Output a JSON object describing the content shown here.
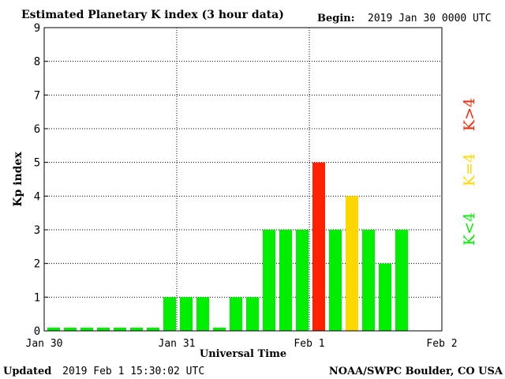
{
  "chart_data": {
    "type": "bar",
    "title": "Estimated Planetary K index (3 hour data)",
    "begin_label": "Begin:",
    "begin_value": "2019 Jan 30 0000 UTC",
    "ylabel": "Kp index",
    "xlabel": "Universal Time",
    "ylim": [
      0,
      9
    ],
    "yticks": [
      "0",
      "1",
      "2",
      "3",
      "4",
      "5",
      "6",
      "7",
      "8",
      "9"
    ],
    "x_tick_labels": [
      "Jan 30",
      "Jan 31",
      "Feb 1",
      "Feb 2"
    ],
    "slots_per_day": 8,
    "total_slots": 24,
    "values": [
      0,
      0,
      0,
      0,
      0,
      0,
      0,
      1,
      1,
      1,
      0,
      1,
      1,
      3,
      3,
      3,
      5,
      3,
      4,
      3,
      2,
      3
    ],
    "grid": "dotted",
    "legend": [
      {
        "label": "K<4",
        "color": "#00ee00"
      },
      {
        "label": "K=4",
        "color": "#ffd700"
      },
      {
        "label": "K>4",
        "color": "#ff2200"
      }
    ],
    "colors": {
      "low": "#00ee00",
      "mid": "#ffd700",
      "high": "#ff2200"
    }
  },
  "footer": {
    "updated_label": "Updated",
    "updated_value": "2019 Feb  1 15:30:02 UTC",
    "source": "NOAA/SWPC Boulder, CO USA"
  }
}
